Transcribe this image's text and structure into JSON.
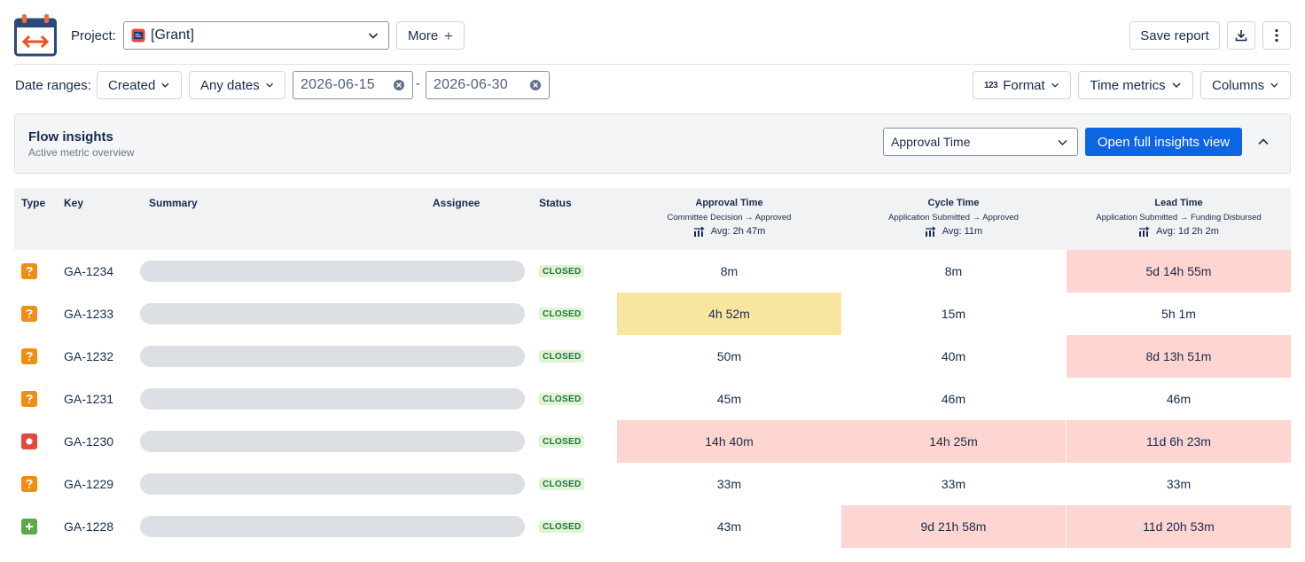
{
  "app": {
    "logo_icon": "calendar-arrows-icon"
  },
  "project": {
    "label": "Project:",
    "selected": "[Grant]",
    "icon": "project-icon"
  },
  "toolbar": {
    "more_label": "More",
    "save_report_label": "Save report",
    "download_icon": "download-icon",
    "menu_icon": "more-vertical-icon"
  },
  "filters": {
    "date_ranges_label": "Date ranges:",
    "created_label": "Created",
    "any_dates_label": "Any dates",
    "date_from": "2026-06-15",
    "date_to": "2026-06-30",
    "separator": "-",
    "format_label": "Format",
    "format_icon_text": "123",
    "time_metrics_label": "Time metrics",
    "columns_label": "Columns"
  },
  "insights": {
    "title": "Flow insights",
    "subtitle": "Active metric overview",
    "metric_selected": "Approval Time",
    "open_button": "Open full insights view"
  },
  "table": {
    "headers": {
      "type": "Type",
      "key": "Key",
      "summary": "Summary",
      "assignee": "Assignee",
      "status": "Status"
    },
    "metrics": [
      {
        "title": "Approval Time",
        "sub": "Committee Decision → Approved",
        "avg": "Avg: 2h 47m"
      },
      {
        "title": "Cycle Time",
        "sub": "Application Submitted → Approved",
        "avg": "Avg: 11m"
      },
      {
        "title": "Lead Time",
        "sub": "Application Submitted → Funding Disbursed",
        "avg": "Avg: 1d 2h 2m"
      }
    ],
    "rows": [
      {
        "type": "question",
        "key": "GA-1234",
        "status": "CLOSED",
        "v1": "8m",
        "v2": "8m",
        "v3": "5d 14h 55m"
      },
      {
        "type": "question",
        "key": "GA-1233",
        "status": "CLOSED",
        "v1": "4h 52m",
        "v2": "15m",
        "v3": "5h 1m"
      },
      {
        "type": "question",
        "key": "GA-1232",
        "status": "CLOSED",
        "v1": "50m",
        "v2": "40m",
        "v3": "8d 13h 51m"
      },
      {
        "type": "question",
        "key": "GA-1231",
        "status": "CLOSED",
        "v1": "45m",
        "v2": "46m",
        "v3": "46m"
      },
      {
        "type": "bug",
        "key": "GA-1230",
        "status": "CLOSED",
        "v1": "14h 40m",
        "v2": "14h 25m",
        "v3": "11d 6h 23m"
      },
      {
        "type": "question",
        "key": "GA-1229",
        "status": "CLOSED",
        "v1": "33m",
        "v2": "33m",
        "v3": "33m"
      },
      {
        "type": "new-feature",
        "key": "GA-1228",
        "status": "CLOSED",
        "v1": "43m",
        "v2": "9d 21h 58m",
        "v3": "11d 20h 53m"
      }
    ]
  },
  "colors": {
    "primary": "#0c66e4",
    "highlight_red": "#ffd5d2",
    "highlight_yellow": "#f8e6a0",
    "status_green_bg": "#dff5d0",
    "question_orange": "#f18d13",
    "bug_red": "#e2483d",
    "feature_green": "#5da84a"
  }
}
